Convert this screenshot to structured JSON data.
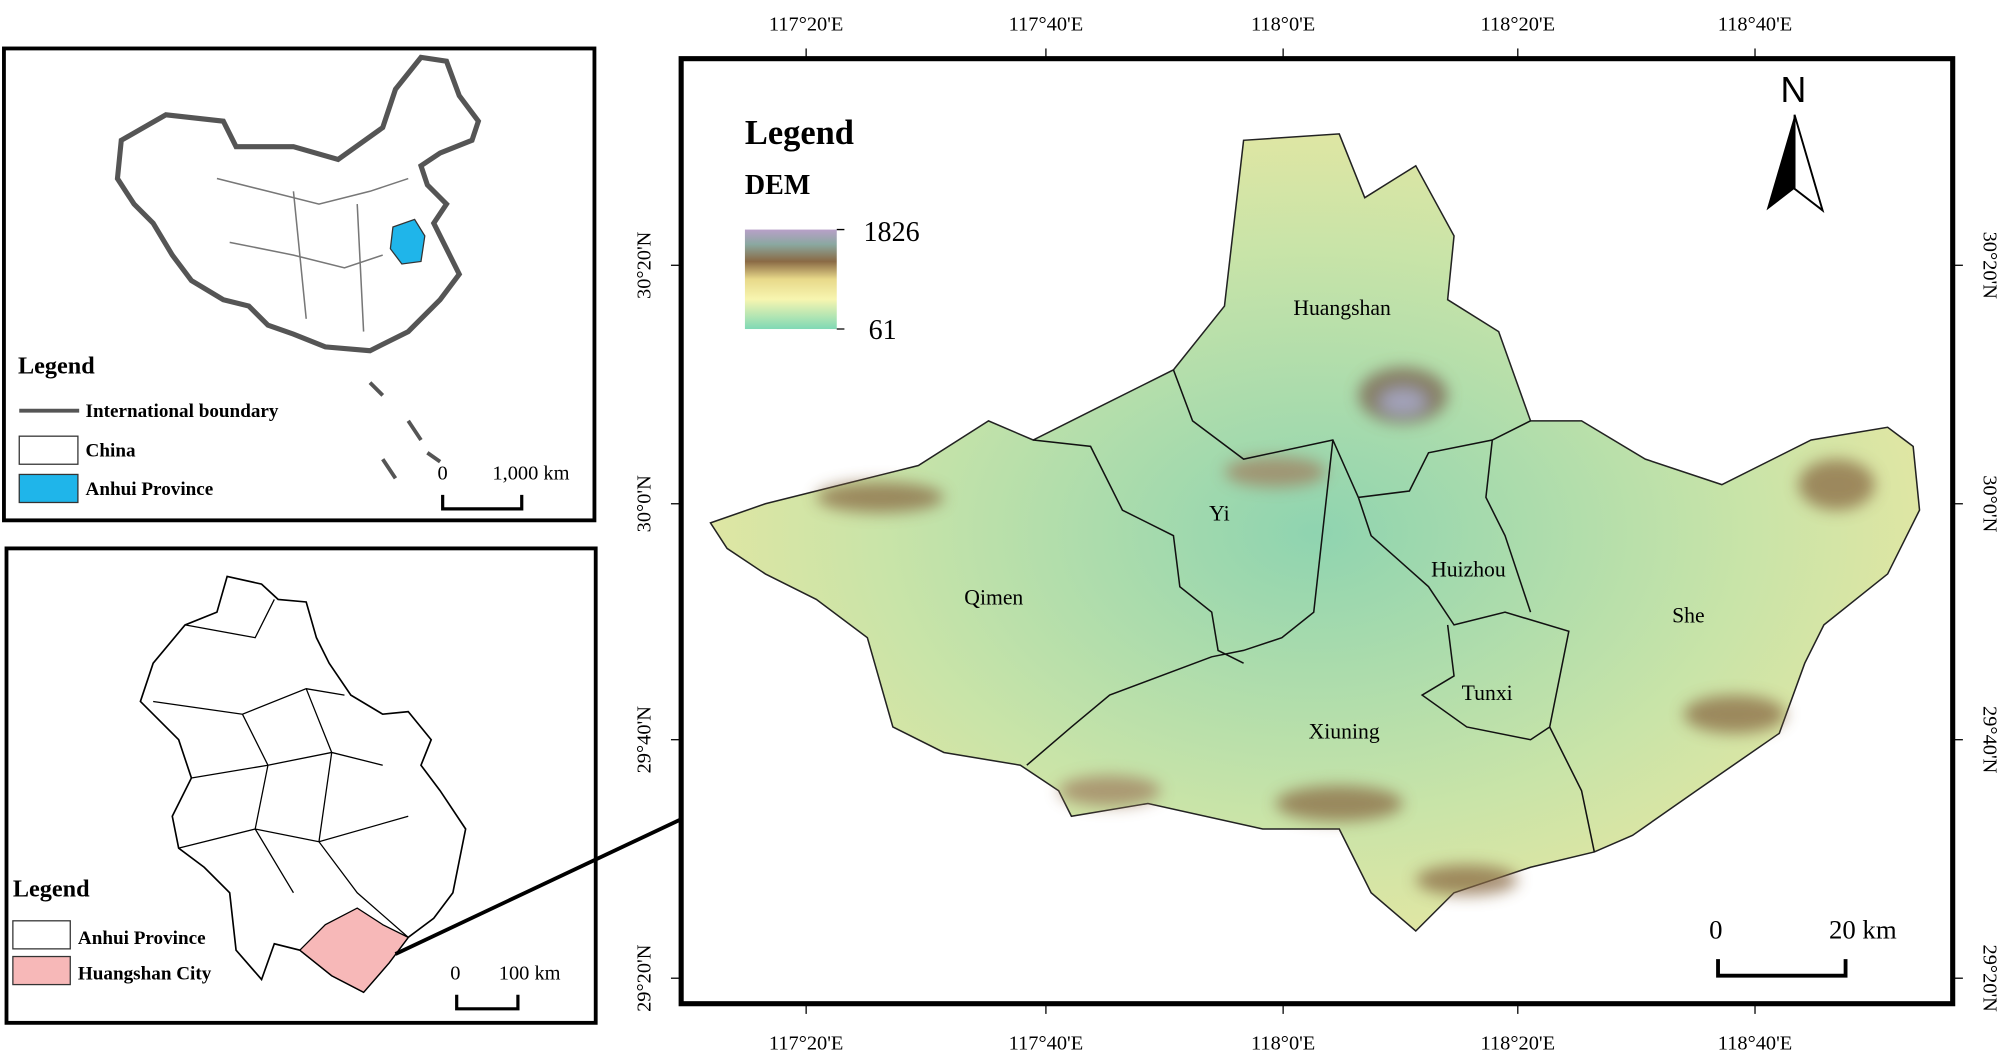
{
  "inset_china": {
    "legend_title": "Legend",
    "legend_items": [
      "International boundary",
      "China",
      "Anhui Province"
    ],
    "scale_labels": [
      "0",
      "1,000 km"
    ]
  },
  "inset_anhui": {
    "legend_title": "Legend",
    "legend_items": [
      "Anhui Province",
      "Huangshan City"
    ],
    "scale_labels": [
      "0",
      "100  km"
    ]
  },
  "main_map": {
    "lon_labels": [
      "117°20'E",
      "117°40'E",
      "118°0'E",
      "118°20'E",
      "118°40'E"
    ],
    "lat_labels": [
      "30°20'N",
      "30°0'N",
      "29°40'N",
      "29°20'N"
    ],
    "legend_title": "Legend",
    "legend_subtitle": "DEM",
    "dem_max": 1826,
    "dem_min": 61,
    "north": "N",
    "scale_labels": [
      "0",
      "20 km"
    ],
    "place_labels": [
      "Huangshan",
      "Yi",
      "Qimen",
      "Huizhou",
      "She",
      "Tunxi",
      "Xiuning"
    ]
  }
}
